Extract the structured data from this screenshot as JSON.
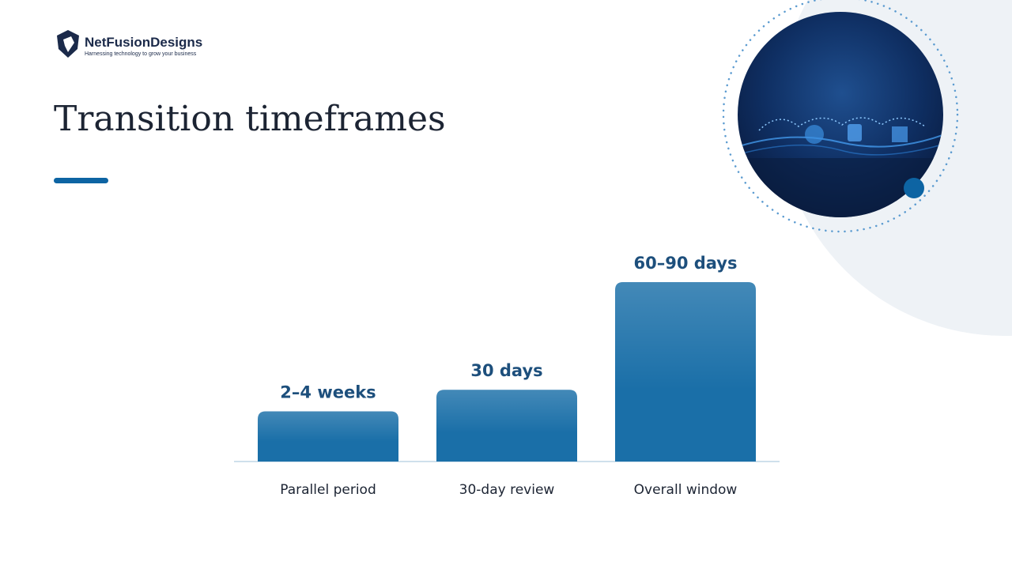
{
  "header": {
    "brand": "NetFusionDesigns",
    "tagline": "Harnessing technology to grow your business"
  },
  "chart_data": {
    "type": "bar",
    "title": "Transition timeframes",
    "categories": [
      "Parallel period",
      "30-day review",
      "Overall window"
    ],
    "values": [
      21,
      30,
      75
    ],
    "value_labels": [
      "2–4 weeks",
      "30 days",
      "60–90 days"
    ],
    "color": "#1a6fa8"
  }
}
